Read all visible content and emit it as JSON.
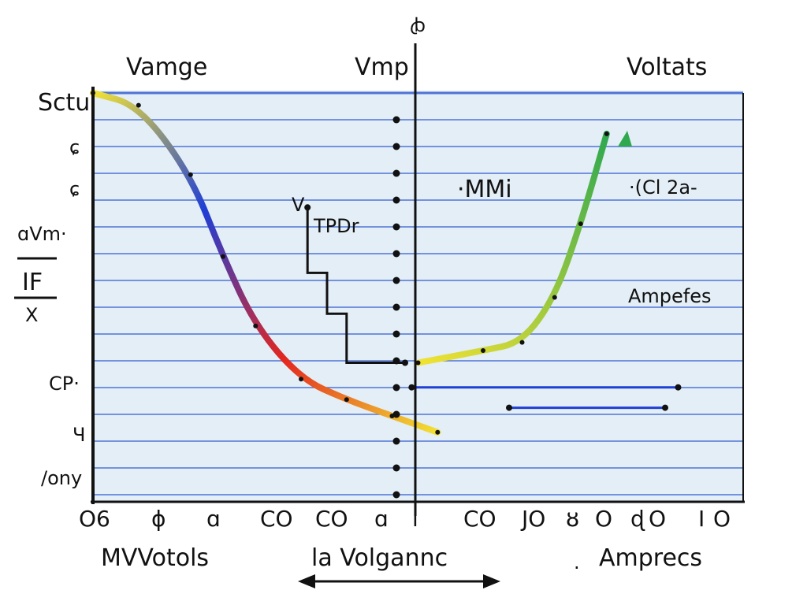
{
  "chart_data": {
    "type": "line",
    "title": "",
    "top_labels": {
      "left": "Vamge",
      "center": "Vmp",
      "right": "Voltats"
    },
    "top_axis_mark": "ꞗ",
    "left_labels": [
      "Sctu",
      "ɕ",
      "ɕ",
      "ɑVm·",
      "IF",
      "X",
      "CP·",
      "Ч",
      "/ony"
    ],
    "x_tick_labels": [
      "O6",
      "ɸ",
      "ɑ",
      "CO",
      "CO",
      "ɑ",
      "l",
      "CO",
      "JO",
      "ȣ",
      "O",
      "ɖ",
      "O",
      "I",
      "O"
    ],
    "bottom_labels": {
      "left": "MVVotols",
      "center": "la Volgannc",
      "right": "Amprecs",
      "right_prefix": "."
    },
    "annotations": [
      {
        "id": "v",
        "text": "V"
      },
      {
        "id": "tpdr",
        "text": "TPDr"
      },
      {
        "id": "mmi",
        "text": "·MMi"
      },
      {
        "id": "cl2a",
        "text": "·(Cl 2a-"
      },
      {
        "id": "ampefes",
        "text": "Ampefes"
      }
    ],
    "grid": true,
    "xlim": [
      0,
      10
    ],
    "ylim": [
      0,
      10
    ],
    "series": [
      {
        "color_stops": [
          "#f2e233",
          "#1f3fd6",
          "#e3261f",
          "#f2e233"
        ],
        "points": [
          [
            0.0,
            10.0
          ],
          [
            0.7,
            9.7
          ],
          [
            1.5,
            8.0
          ],
          [
            2.0,
            6.0
          ],
          [
            2.5,
            4.3
          ],
          [
            3.2,
            3.0
          ],
          [
            3.9,
            2.5
          ],
          [
            4.6,
            2.1
          ],
          [
            5.3,
            1.7
          ]
        ]
      },
      {
        "color_stops": [
          "#f2e233",
          "#2fa84f"
        ],
        "points": [
          [
            5.0,
            3.4
          ],
          [
            6.0,
            3.7
          ],
          [
            6.6,
            3.9
          ],
          [
            7.1,
            5.0
          ],
          [
            7.5,
            6.8
          ],
          [
            7.9,
            9.0
          ]
        ]
      },
      {
        "color": "#111111",
        "points": [
          [
            3.3,
            7.2
          ],
          [
            3.3,
            5.6
          ],
          [
            3.6,
            5.6
          ],
          [
            3.6,
            4.6
          ],
          [
            3.9,
            4.6
          ],
          [
            3.9,
            3.4
          ],
          [
            4.8,
            3.4
          ]
        ]
      },
      {
        "color": "#1f3fd6",
        "points": [
          [
            4.9,
            2.8
          ],
          [
            9.0,
            2.8
          ]
        ]
      },
      {
        "color": "#1f3fd6",
        "points": [
          [
            6.4,
            2.3
          ],
          [
            8.8,
            2.3
          ]
        ]
      }
    ],
    "legend": "none"
  },
  "colors": {
    "grid_line": "#4f73d6",
    "panel": "#e3eef6",
    "axis": "#111111"
  }
}
